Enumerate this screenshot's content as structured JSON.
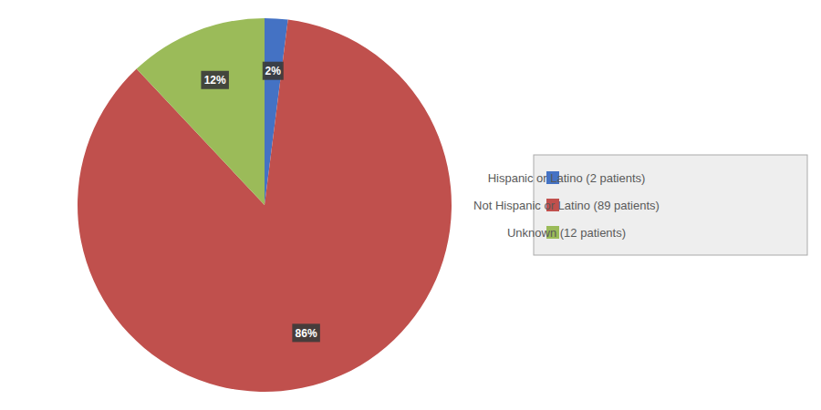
{
  "chart_data": {
    "type": "pie",
    "categories": [
      "Hispanic or Latino (2 patients)",
      "Not Hispanic or Latino (89 patients)",
      "Unknown (12 patients)"
    ],
    "values": [
      2,
      86,
      12
    ],
    "value_labels": [
      "2%",
      "86%",
      "12%"
    ],
    "colors": [
      "#4472C4",
      "#C0504D",
      "#9BBB59"
    ],
    "data_labels": true,
    "legend": "right"
  }
}
